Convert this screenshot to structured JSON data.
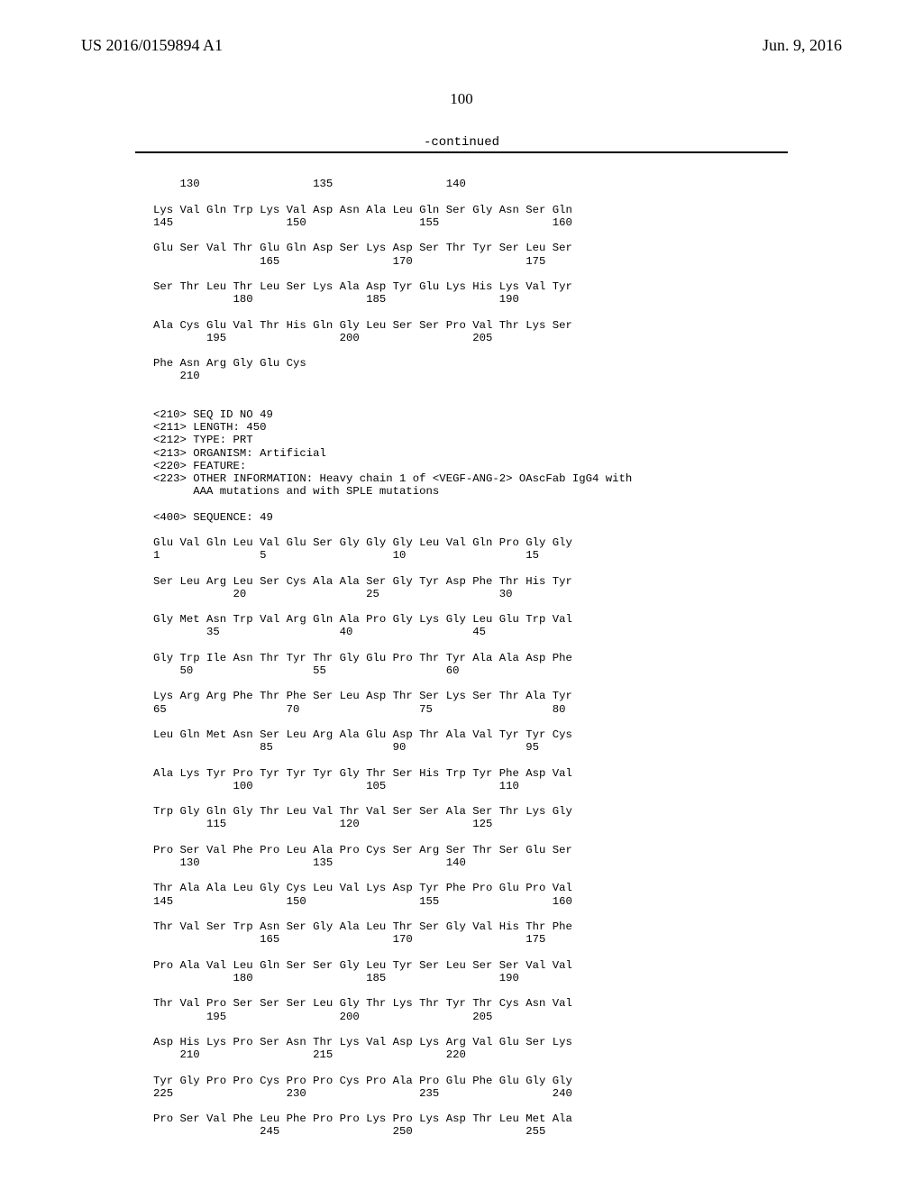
{
  "header": {
    "left": "US 2016/0159894 A1",
    "right": "Jun. 9, 2016",
    "page_number": "100",
    "continued": "-continued"
  },
  "sequence_lines": [
    "    130                 135                 140",
    "",
    "Lys Val Gln Trp Lys Val Asp Asn Ala Leu Gln Ser Gly Asn Ser Gln",
    "145                 150                 155                 160",
    "",
    "Glu Ser Val Thr Glu Gln Asp Ser Lys Asp Ser Thr Tyr Ser Leu Ser",
    "                165                 170                 175",
    "",
    "Ser Thr Leu Thr Leu Ser Lys Ala Asp Tyr Glu Lys His Lys Val Tyr",
    "            180                 185                 190",
    "",
    "Ala Cys Glu Val Thr His Gln Gly Leu Ser Ser Pro Val Thr Lys Ser",
    "        195                 200                 205",
    "",
    "Phe Asn Arg Gly Glu Cys",
    "    210",
    "",
    "",
    "<210> SEQ ID NO 49",
    "<211> LENGTH: 450",
    "<212> TYPE: PRT",
    "<213> ORGANISM: Artificial",
    "<220> FEATURE:",
    "<223> OTHER INFORMATION: Heavy chain 1 of <VEGF-ANG-2> OAscFab IgG4 with",
    "      AAA mutations and with SPLE mutations",
    "",
    "<400> SEQUENCE: 49",
    "",
    "Glu Val Gln Leu Val Glu Ser Gly Gly Gly Leu Val Gln Pro Gly Gly",
    "1               5                   10                  15",
    "",
    "Ser Leu Arg Leu Ser Cys Ala Ala Ser Gly Tyr Asp Phe Thr His Tyr",
    "            20                  25                  30",
    "",
    "Gly Met Asn Trp Val Arg Gln Ala Pro Gly Lys Gly Leu Glu Trp Val",
    "        35                  40                  45",
    "",
    "Gly Trp Ile Asn Thr Tyr Thr Gly Glu Pro Thr Tyr Ala Ala Asp Phe",
    "    50                  55                  60",
    "",
    "Lys Arg Arg Phe Thr Phe Ser Leu Asp Thr Ser Lys Ser Thr Ala Tyr",
    "65                  70                  75                  80",
    "",
    "Leu Gln Met Asn Ser Leu Arg Ala Glu Asp Thr Ala Val Tyr Tyr Cys",
    "                85                  90                  95",
    "",
    "Ala Lys Tyr Pro Tyr Tyr Tyr Gly Thr Ser His Trp Tyr Phe Asp Val",
    "            100                 105                 110",
    "",
    "Trp Gly Gln Gly Thr Leu Val Thr Val Ser Ser Ala Ser Thr Lys Gly",
    "        115                 120                 125",
    "",
    "Pro Ser Val Phe Pro Leu Ala Pro Cys Ser Arg Ser Thr Ser Glu Ser",
    "    130                 135                 140",
    "",
    "Thr Ala Ala Leu Gly Cys Leu Val Lys Asp Tyr Phe Pro Glu Pro Val",
    "145                 150                 155                 160",
    "",
    "Thr Val Ser Trp Asn Ser Gly Ala Leu Thr Ser Gly Val His Thr Phe",
    "                165                 170                 175",
    "",
    "Pro Ala Val Leu Gln Ser Ser Gly Leu Tyr Ser Leu Ser Ser Val Val",
    "            180                 185                 190",
    "",
    "Thr Val Pro Ser Ser Ser Leu Gly Thr Lys Thr Tyr Thr Cys Asn Val",
    "        195                 200                 205",
    "",
    "Asp His Lys Pro Ser Asn Thr Lys Val Asp Lys Arg Val Glu Ser Lys",
    "    210                 215                 220",
    "",
    "Tyr Gly Pro Pro Cys Pro Pro Cys Pro Ala Pro Glu Phe Glu Gly Gly",
    "225                 230                 235                 240",
    "",
    "Pro Ser Val Phe Leu Phe Pro Pro Lys Pro Lys Asp Thr Leu Met Ala",
    "                245                 250                 255"
  ]
}
